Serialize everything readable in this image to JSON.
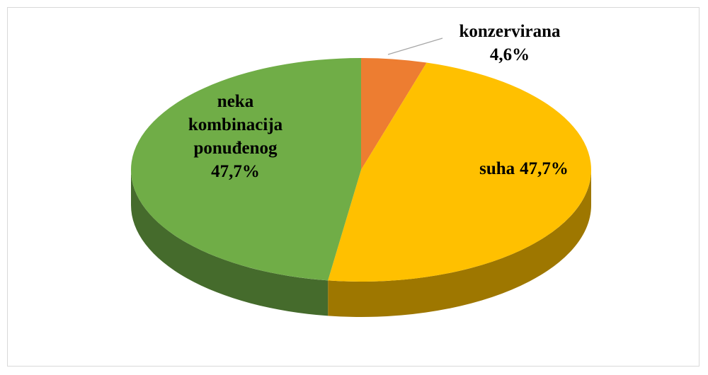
{
  "chart_data": {
    "type": "pie",
    "categories": [
      "konzervirana",
      "suha",
      "neka kombinacija ponuđenog"
    ],
    "values": [
      4.6,
      47.7,
      47.7
    ],
    "value_labels": [
      "4,6%",
      "47,7%",
      "47,7%"
    ],
    "colors": [
      "#ed7d31",
      "#ffc000",
      "#70ad47"
    ]
  }
}
